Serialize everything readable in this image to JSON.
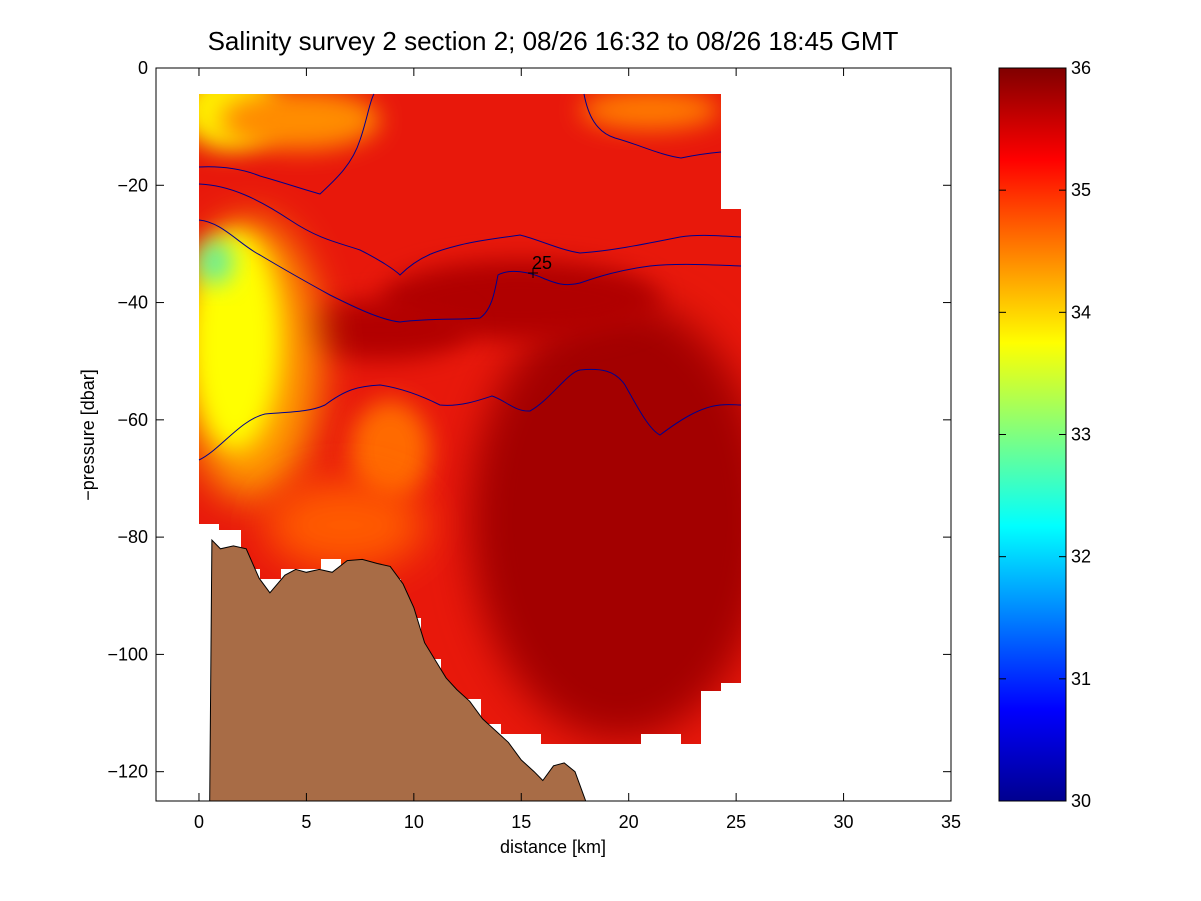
{
  "chart_data": {
    "type": "heatmap",
    "title": "Salinity survey 2 section 2; 08/26 16:32 to 08/26 18:45 GMT",
    "xlabel": "distance [km]",
    "ylabel": "−pressure [dbar]",
    "xlim": [
      -2,
      35
    ],
    "ylim": [
      -125,
      0
    ],
    "xticks": [
      0,
      5,
      10,
      15,
      20,
      25,
      30,
      35
    ],
    "xtick_labels": [
      "0",
      "5",
      "10",
      "15",
      "20",
      "25",
      "30",
      "35"
    ],
    "yticks": [
      0,
      -20,
      -40,
      -60,
      -80,
      -100,
      -120
    ],
    "ytick_labels": [
      "0",
      "−20",
      "−40",
      "−60",
      "−80",
      "−100",
      "−120"
    ],
    "colorbar": {
      "range": [
        30,
        36
      ],
      "ticks": [
        30,
        31,
        32,
        33,
        34,
        35,
        36
      ],
      "tick_labels": [
        "30",
        "31",
        "32",
        "33",
        "34",
        "35",
        "36"
      ],
      "colormap": "jet"
    },
    "contour_label": {
      "text": "25",
      "x": 15.6,
      "y": -35
    },
    "data_bounds": {
      "x_range": [
        0,
        25.2
      ],
      "y_range": [
        -115,
        -4.5
      ]
    },
    "salinity_regions": [
      {
        "name": "fresh surface wedge (west)",
        "x": [
          0,
          3
        ],
        "y": [
          -78,
          -5
        ],
        "value": 33.8
      },
      {
        "name": "minimum patch",
        "x": [
          0,
          1.3
        ],
        "y": [
          -35,
          -27
        ],
        "value": 33.1
      },
      {
        "name": "upper layer",
        "x": [
          2,
          25
        ],
        "y": [
          -25,
          -5
        ],
        "value": 35.0
      },
      {
        "name": "subsurface core",
        "x": [
          10,
          25
        ],
        "y": [
          -115,
          -30
        ],
        "value": 35.6
      }
    ],
    "bathymetry": {
      "fill_color": "#a86c46",
      "x": [
        0.5,
        0.6,
        1.0,
        1.6,
        2.2,
        2.8,
        3.3,
        4.0,
        4.5,
        5.0,
        5.6,
        6.2,
        6.9,
        7.6,
        8.3,
        8.9,
        9.5,
        10.0,
        10.5,
        11.0,
        11.5,
        12.0,
        12.6,
        13.2,
        13.8,
        14.4,
        15.0,
        15.6,
        16.0,
        16.5,
        17.0,
        17.5,
        18.0
      ],
      "y": [
        -125,
        -80.5,
        -82,
        -81.5,
        -82,
        -87,
        -89.5,
        -86.5,
        -85.5,
        -86,
        -85.5,
        -86,
        -84,
        -83.8,
        -84.5,
        -85,
        -88,
        -92,
        -98,
        -101,
        -104,
        -106,
        -108,
        -111,
        -113,
        -115,
        -118,
        -120,
        -121.5,
        -119,
        -118.5,
        -120,
        -125
      ]
    },
    "colors": {
      "land": "#a86c46",
      "contour": "#00008f",
      "axes": "#000000"
    }
  }
}
